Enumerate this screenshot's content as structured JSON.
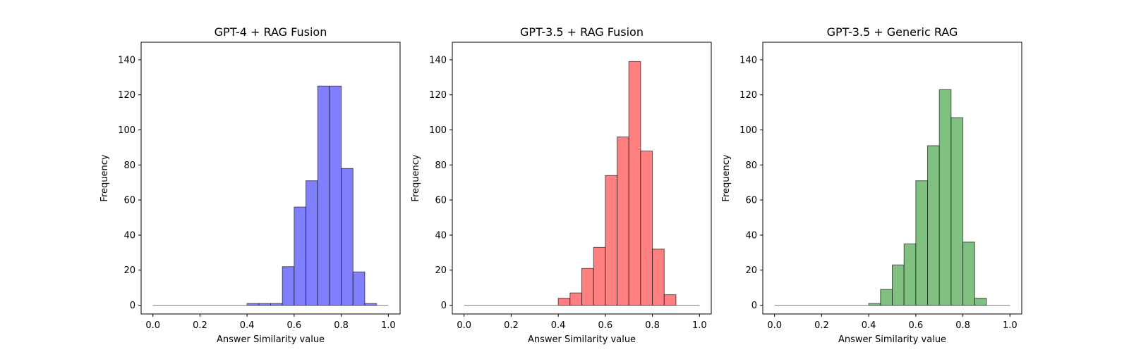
{
  "chart_data": [
    {
      "type": "bar",
      "title": "GPT-4 + RAG Fusion",
      "xlabel": "Answer Similarity value",
      "ylabel": "Frequency",
      "xlim": [
        -0.05,
        1.05
      ],
      "ylim": [
        -5,
        150
      ],
      "xticks": [
        "0.0",
        "0.2",
        "0.4",
        "0.6",
        "0.8",
        "1.0"
      ],
      "yticks": [
        "0",
        "20",
        "40",
        "60",
        "80",
        "100",
        "120",
        "140"
      ],
      "color": "#8080ff",
      "bin_width": 0.05,
      "bins": [
        0.0,
        0.05,
        0.1,
        0.15,
        0.2,
        0.25,
        0.3,
        0.35,
        0.4,
        0.45,
        0.5,
        0.55,
        0.6,
        0.65,
        0.7,
        0.75,
        0.8,
        0.85,
        0.9,
        0.95
      ],
      "values": [
        0,
        0,
        0,
        0,
        0,
        0,
        0,
        0,
        1,
        1,
        1,
        22,
        56,
        71,
        125,
        125,
        78,
        19,
        1,
        0
      ]
    },
    {
      "type": "bar",
      "title": "GPT-3.5 + RAG Fusion",
      "xlabel": "Answer Similarity value",
      "ylabel": "Frequency",
      "xlim": [
        -0.05,
        1.05
      ],
      "ylim": [
        -5,
        150
      ],
      "xticks": [
        "0.0",
        "0.2",
        "0.4",
        "0.6",
        "0.8",
        "1.0"
      ],
      "yticks": [
        "0",
        "20",
        "40",
        "60",
        "80",
        "100",
        "120",
        "140"
      ],
      "color": "#ff8080",
      "bin_width": 0.05,
      "bins": [
        0.0,
        0.05,
        0.1,
        0.15,
        0.2,
        0.25,
        0.3,
        0.35,
        0.4,
        0.45,
        0.5,
        0.55,
        0.6,
        0.65,
        0.7,
        0.75,
        0.8,
        0.85,
        0.9,
        0.95
      ],
      "values": [
        0,
        0,
        0,
        0,
        0,
        0,
        0,
        0,
        4,
        7,
        21,
        33,
        74,
        96,
        139,
        88,
        32,
        6,
        0,
        0
      ]
    },
    {
      "type": "bar",
      "title": "GPT-3.5 + Generic RAG",
      "xlabel": "Answer Similarity value",
      "ylabel": "Frequency",
      "xlim": [
        -0.05,
        1.05
      ],
      "ylim": [
        -5,
        150
      ],
      "xticks": [
        "0.0",
        "0.2",
        "0.4",
        "0.6",
        "0.8",
        "1.0"
      ],
      "yticks": [
        "0",
        "20",
        "40",
        "60",
        "80",
        "100",
        "120",
        "140"
      ],
      "color": "#80c080",
      "bin_width": 0.05,
      "bins": [
        0.0,
        0.05,
        0.1,
        0.15,
        0.2,
        0.25,
        0.3,
        0.35,
        0.4,
        0.45,
        0.5,
        0.55,
        0.6,
        0.65,
        0.7,
        0.75,
        0.8,
        0.85,
        0.9,
        0.95
      ],
      "values": [
        0,
        0,
        0,
        0,
        0,
        0,
        0,
        0,
        1,
        9,
        23,
        35,
        71,
        91,
        123,
        107,
        36,
        4,
        0,
        0
      ]
    }
  ]
}
